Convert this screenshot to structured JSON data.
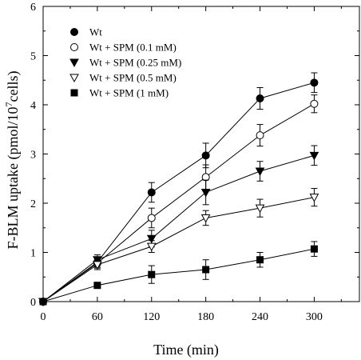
{
  "chart_data": {
    "type": "line",
    "title": "",
    "xlabel": "Time (min)",
    "ylabel_main": "F-BLM uptake (pmol/10",
    "ylabel_sup": "7",
    "ylabel_tail": "cells)",
    "xlim": [
      0,
      350
    ],
    "ylim": [
      0,
      6
    ],
    "xticks": [
      0,
      60,
      120,
      180,
      240,
      300
    ],
    "yticks": [
      0,
      1,
      2,
      3,
      4,
      5,
      6
    ],
    "grid": false,
    "legend_position": "top-left",
    "x": [
      0,
      60,
      120,
      180,
      240,
      300
    ],
    "series": [
      {
        "name": "Wt",
        "marker": "circle-filled",
        "values": [
          0,
          0.8,
          2.22,
          2.97,
          4.13,
          4.45
        ],
        "errors": [
          0,
          0.1,
          0.2,
          0.25,
          0.22,
          0.2
        ]
      },
      {
        "name": "Wt + SPM (0.1 mM)",
        "marker": "circle-open",
        "values": [
          0,
          0.78,
          1.7,
          2.53,
          3.38,
          4.02
        ],
        "errors": [
          0,
          0.1,
          0.2,
          0.25,
          0.22,
          0.18
        ]
      },
      {
        "name": "Wt + SPM (0.25 mM)",
        "marker": "triangle-down-filled",
        "values": [
          0,
          0.85,
          1.28,
          2.22,
          2.65,
          2.97
        ],
        "errors": [
          0,
          0.1,
          0.17,
          0.25,
          0.2,
          0.2
        ]
      },
      {
        "name": "Wt + SPM (0.5 mM)",
        "marker": "triangle-down-open",
        "values": [
          0,
          0.75,
          1.12,
          1.7,
          1.9,
          2.12
        ],
        "errors": [
          0,
          0.1,
          0.12,
          0.15,
          0.18,
          0.18
        ]
      },
      {
        "name": "Wt + SPM (1 mM)",
        "marker": "square-filled",
        "values": [
          0,
          0.33,
          0.55,
          0.65,
          0.85,
          1.07
        ],
        "errors": [
          0,
          0.05,
          0.18,
          0.2,
          0.15,
          0.15
        ]
      }
    ]
  }
}
